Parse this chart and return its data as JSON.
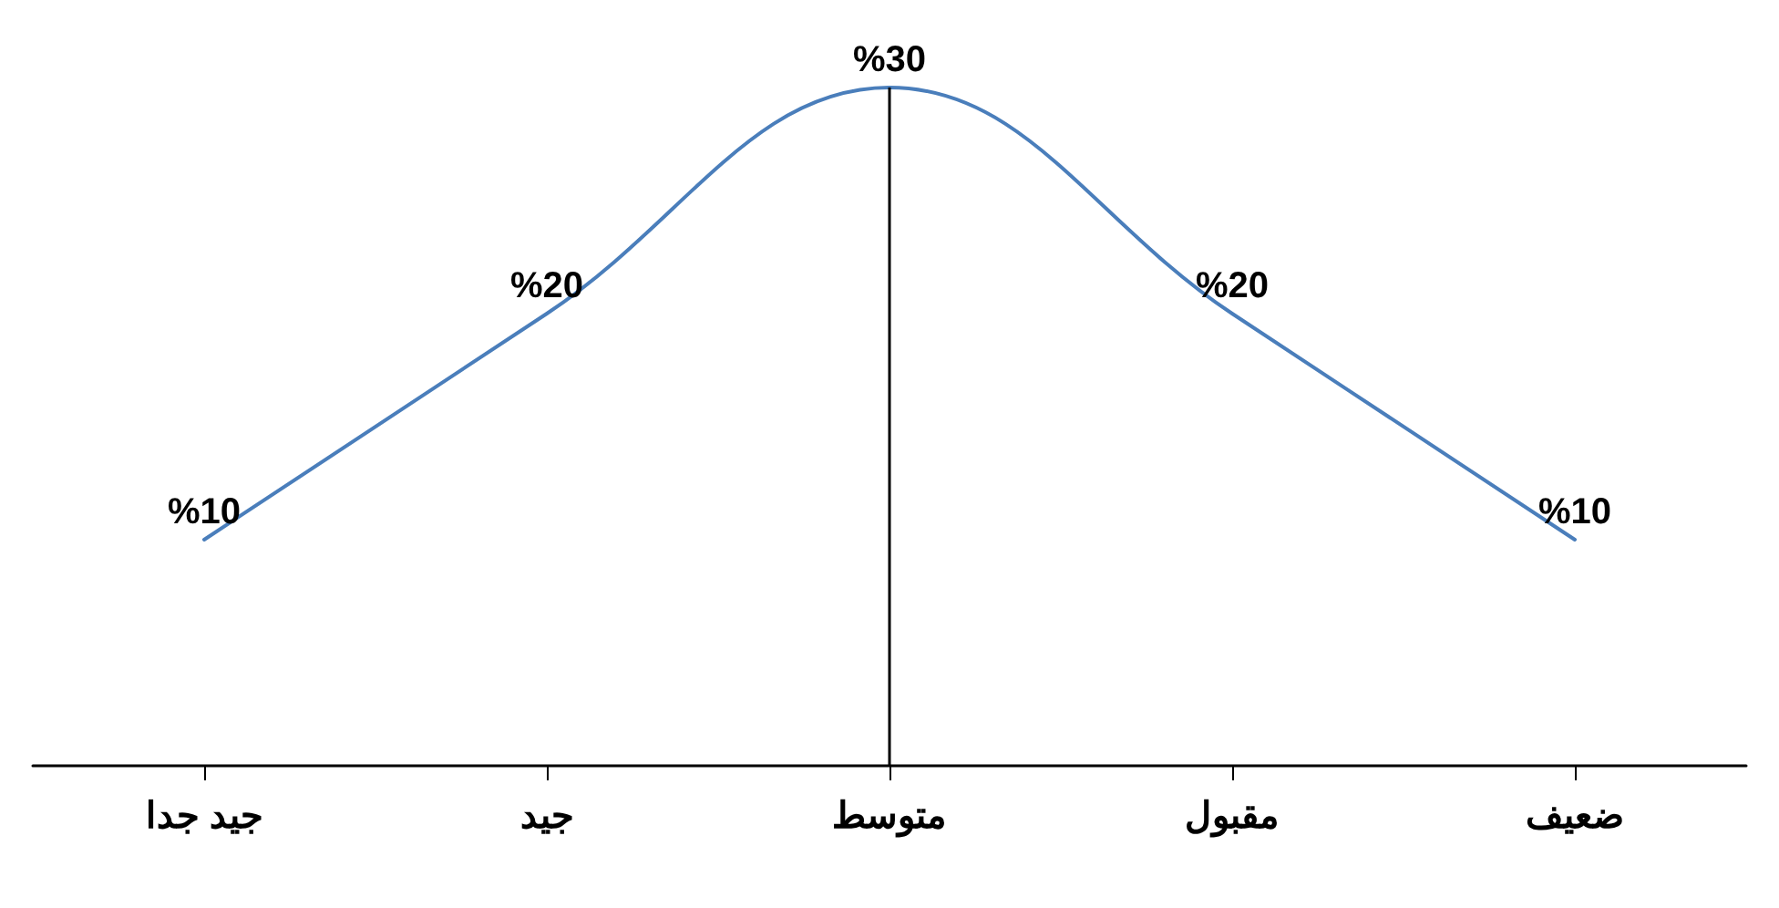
{
  "chart_data": {
    "type": "line",
    "categories": [
      "جيد جدا",
      "جيد",
      "متوسط",
      "مقبول",
      "ضعيف"
    ],
    "series": [
      {
        "color": "#4a7ebb",
        "values": [
          10,
          20,
          30,
          20,
          10
        ],
        "value_labels": [
          "%10",
          "%20",
          "%30",
          "%20",
          "%10"
        ]
      }
    ],
    "ref_lines": [
      {
        "axis": "x",
        "value": "متوسط",
        "color": "#000000"
      }
    ],
    "marker": "none",
    "line_style": "solid",
    "grid": false
  }
}
